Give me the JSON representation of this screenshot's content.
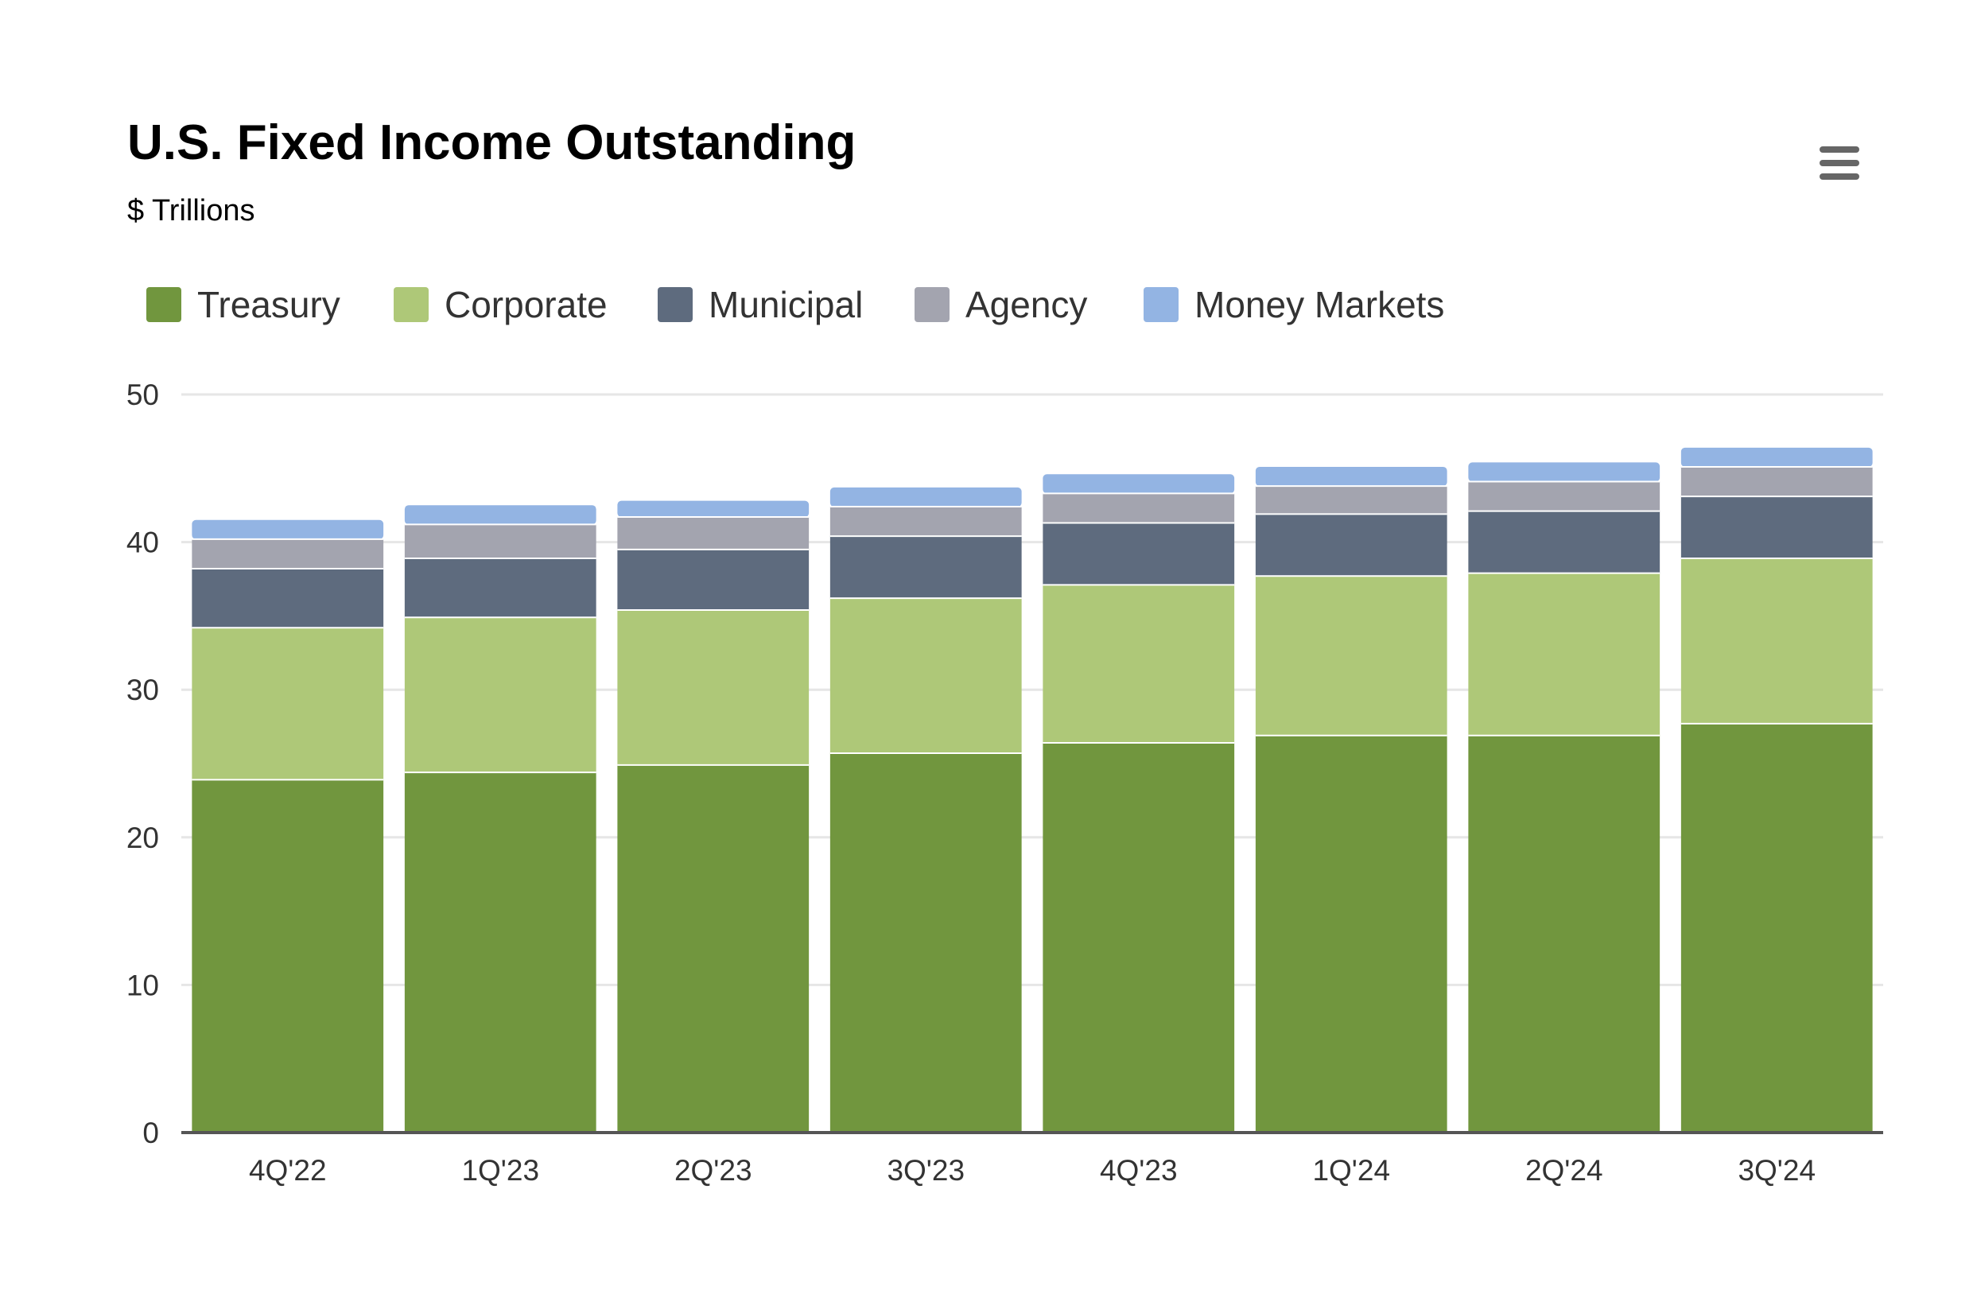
{
  "header": {
    "title": "U.S. Fixed Income Outstanding",
    "subtitle": "$ Trillions",
    "menu_icon": "hamburger-menu-icon"
  },
  "legend": {
    "items": [
      {
        "label": "Treasury",
        "color": "#71963e"
      },
      {
        "label": "Corporate",
        "color": "#aec878"
      },
      {
        "label": "Municipal",
        "color": "#5e6b7e"
      },
      {
        "label": "Agency",
        "color": "#a3a4af"
      },
      {
        "label": "Money Markets",
        "color": "#93b4e3"
      }
    ]
  },
  "chart_data": {
    "type": "bar",
    "stacked": true,
    "title": "U.S. Fixed Income Outstanding",
    "subtitle": "$ Trillions",
    "categories": [
      "4Q'22",
      "1Q'23",
      "2Q'23",
      "3Q'23",
      "4Q'23",
      "1Q'24",
      "2Q'24",
      "3Q'24"
    ],
    "series": [
      {
        "name": "Treasury",
        "color": "#71963e",
        "values": [
          23.9,
          24.4,
          24.9,
          25.7,
          26.4,
          26.9,
          26.9,
          27.7
        ]
      },
      {
        "name": "Corporate",
        "color": "#aec878",
        "values": [
          10.3,
          10.5,
          10.5,
          10.5,
          10.7,
          10.8,
          11.0,
          11.2
        ]
      },
      {
        "name": "Municipal",
        "color": "#5e6b7e",
        "values": [
          4.0,
          4.0,
          4.1,
          4.2,
          4.2,
          4.2,
          4.2,
          4.2
        ]
      },
      {
        "name": "Agency",
        "color": "#a3a4af",
        "values": [
          2.0,
          2.3,
          2.2,
          2.0,
          2.0,
          1.9,
          2.0,
          2.0
        ]
      },
      {
        "name": "Money Markets",
        "color": "#93b4e3",
        "values": [
          1.3,
          1.3,
          1.1,
          1.3,
          1.3,
          1.3,
          1.3,
          1.3
        ]
      }
    ],
    "y_ticks": [
      "0",
      "10",
      "20",
      "30",
      "40",
      "50"
    ],
    "ylim": [
      0,
      50
    ],
    "xlabel": "",
    "ylabel": "",
    "grid": true,
    "legend_position": "top-left"
  }
}
